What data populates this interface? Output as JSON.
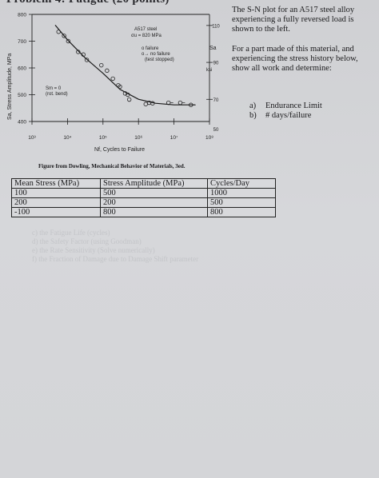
{
  "problem_heading": "Problem 4: Fatigue (20 points)",
  "figure": {
    "caption": "Figure from Dowling, Mechanical Behavior of Materials, 3ed.",
    "material_label": "A517 steel",
    "strength_label": "σu = 820 MPa",
    "legend_failure": "o  failure",
    "legend_no_failure": "o→ no failure",
    "legend_test_stopped": "(test stopped)",
    "mean_stress_label": "Sm = 0",
    "bending_label": "(rot. bend)",
    "right_axis_label": "Sa",
    "right_axis_unit": "ksi"
  },
  "chart_data": {
    "type": "scatter",
    "title": "",
    "xlabel": "Nf, Cycles to Failure",
    "ylabel": "Sa, Stress Amplitude, MPa",
    "x_scale": "log",
    "xlim": [
      1000,
      100000000
    ],
    "ylim": [
      400,
      800
    ],
    "x_tick_labels": [
      "10³",
      "10⁴",
      "10⁵",
      "10⁶",
      "10⁷",
      "10⁸"
    ],
    "y_tick_labels": [
      "400",
      "500",
      "600",
      "700",
      "800"
    ],
    "right_tick_labels": [
      "110",
      "90",
      "70",
      "50"
    ],
    "right_ylim_ksi": [
      58,
      116
    ],
    "failure_points": [
      {
        "x": 5600,
        "y": 735
      },
      {
        "x": 8000,
        "y": 720
      },
      {
        "x": 10500,
        "y": 700
      },
      {
        "x": 20000,
        "y": 660
      },
      {
        "x": 28000,
        "y": 650
      },
      {
        "x": 35000,
        "y": 630
      },
      {
        "x": 90000,
        "y": 610
      },
      {
        "x": 130000,
        "y": 590
      },
      {
        "x": 190000,
        "y": 560
      },
      {
        "x": 270000,
        "y": 535
      },
      {
        "x": 300000,
        "y": 530
      },
      {
        "x": 420000,
        "y": 505
      },
      {
        "x": 500000,
        "y": 500
      },
      {
        "x": 550000,
        "y": 482
      },
      {
        "x": 1600000,
        "y": 465
      },
      {
        "x": 2000000,
        "y": 470
      },
      {
        "x": 2500000,
        "y": 468
      }
    ],
    "runout_points": [
      {
        "x": 7000000,
        "y": 470
      },
      {
        "x": 15000000,
        "y": 470
      },
      {
        "x": 30000000,
        "y": 462
      }
    ],
    "fit_curve": [
      {
        "x": 4500,
        "y": 760
      },
      {
        "x": 10000,
        "y": 705
      },
      {
        "x": 30000,
        "y": 640
      },
      {
        "x": 100000,
        "y": 580
      },
      {
        "x": 300000,
        "y": 520
      },
      {
        "x": 1000000,
        "y": 483
      },
      {
        "x": 3000000,
        "y": 468
      },
      {
        "x": 10000000,
        "y": 462
      },
      {
        "x": 40000000,
        "y": 462
      }
    ]
  },
  "problem_text": {
    "intro": "The S-N plot for an A517 steel alloy experiencing a fully reversed load is shown to the left.",
    "prompt": "For a part made of this material, and experiencing the stress history below, show all work and determine:",
    "tasks": [
      {
        "label": "a)",
        "text": "Endurance Limit"
      },
      {
        "label": "b)",
        "text": "# days/failure"
      }
    ]
  },
  "stress_history": {
    "headers": [
      "Mean Stress (MPa)",
      "Stress Amplitude (MPa)",
      "Cycles/Day"
    ],
    "rows": [
      [
        "100",
        "500",
        "1000"
      ],
      [
        "200",
        "200",
        "500"
      ],
      [
        "-100",
        "800",
        "800"
      ]
    ]
  },
  "bleed_through": [
    "c) the Fatigue Life (cycles)",
    "d) the Safety Factor (using Goodman)",
    "e) the Rate Sensitivity (Solve numerically)",
    "f) the Fraction of Damage due to Damage Shift parameter"
  ]
}
